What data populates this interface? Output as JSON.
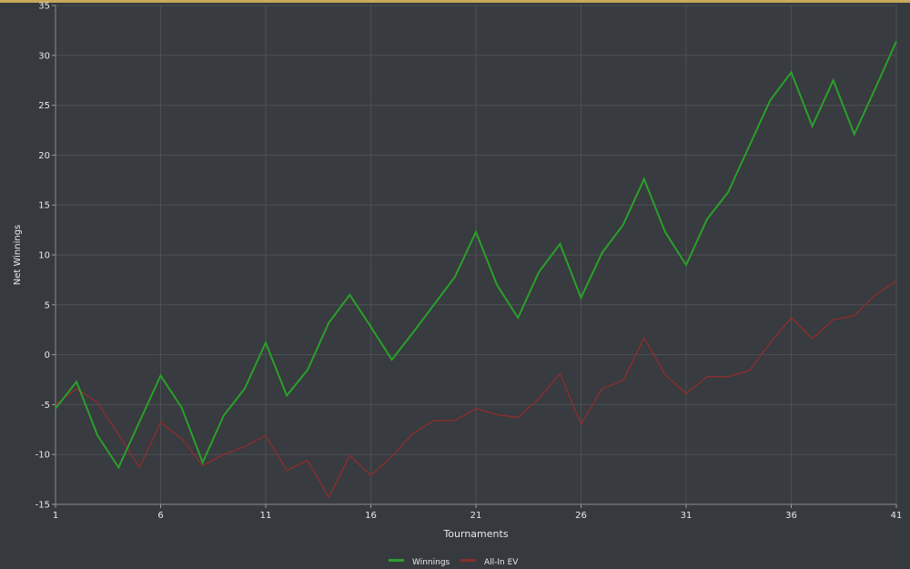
{
  "chart_data": {
    "type": "line",
    "xlabel": "Tournaments",
    "ylabel": "Net Winnings",
    "xlim": [
      1,
      41
    ],
    "ylim": [
      -15,
      35
    ],
    "x_ticks": [
      1,
      6,
      11,
      16,
      21,
      26,
      31,
      36,
      41
    ],
    "y_ticks": [
      -15,
      -10,
      -5,
      0,
      5,
      10,
      15,
      20,
      25,
      30,
      35
    ],
    "grid": true,
    "legend_position": "bottom-center",
    "x": [
      1,
      2,
      3,
      4,
      5,
      6,
      7,
      8,
      9,
      10,
      11,
      12,
      13,
      14,
      15,
      16,
      17,
      18,
      19,
      20,
      21,
      22,
      23,
      24,
      25,
      26,
      27,
      28,
      29,
      30,
      31,
      32,
      33,
      34,
      35,
      36,
      37,
      38,
      39,
      40,
      41
    ],
    "series": [
      {
        "name": "Winnings",
        "color": "#2aa02a",
        "values": [
          -5.4,
          -2.7,
          -8.1,
          -11.3,
          -6.7,
          -2.1,
          -5.3,
          -10.8,
          -6.1,
          -3.4,
          1.2,
          -4.1,
          -1.5,
          3.2,
          6.0,
          2.8,
          -0.5,
          2.2,
          5.0,
          7.8,
          12.3,
          7.0,
          3.7,
          8.3,
          11.1,
          5.7,
          10.2,
          13.0,
          17.6,
          12.3,
          9.0,
          13.6,
          16.3,
          20.9,
          25.5,
          28.3,
          22.9,
          27.5,
          22.1,
          26.7,
          31.4
        ]
      },
      {
        "name": "All-In EV",
        "color": "#8a2e2e",
        "values": [
          -5.0,
          -3.4,
          -4.8,
          -8.0,
          -11.3,
          -6.8,
          -8.4,
          -11.1,
          -10.0,
          -9.2,
          -8.1,
          -11.6,
          -10.6,
          -14.3,
          -10.1,
          -12.1,
          -10.2,
          -7.9,
          -6.6,
          -6.6,
          -5.4,
          -6.0,
          -6.3,
          -4.4,
          -1.9,
          -7.0,
          -3.4,
          -2.6,
          1.7,
          -2.0,
          -3.9,
          -2.2,
          -2.2,
          -1.6,
          1.2,
          3.7,
          1.6,
          3.5,
          3.9,
          6.0,
          7.4
        ]
      }
    ]
  }
}
